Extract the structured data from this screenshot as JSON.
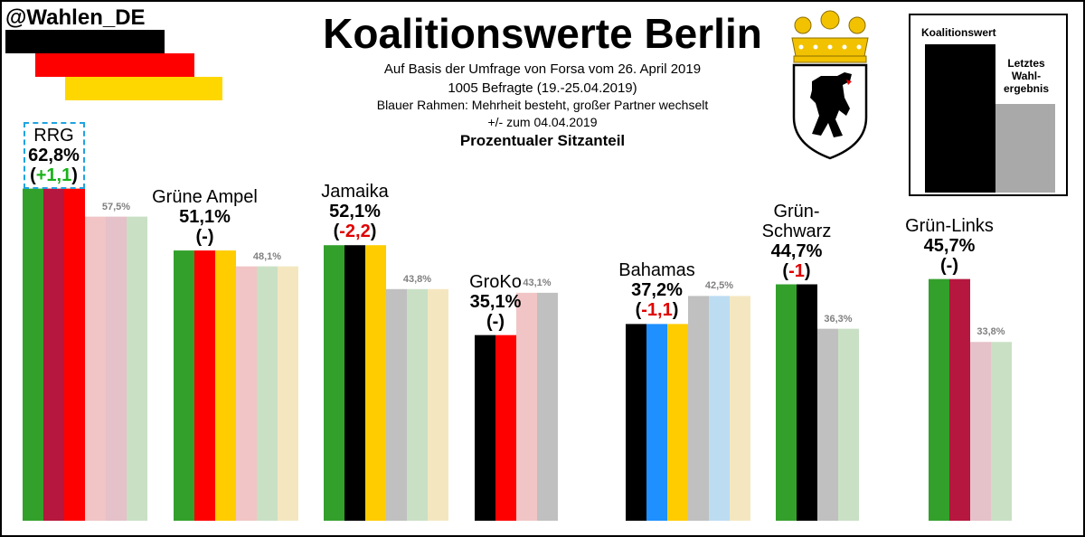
{
  "header": {
    "handle": "@Wahlen_DE",
    "title": "Koalitionswerte Berlin",
    "subtitle_lines": [
      "Auf Basis der Umfrage  von Forsa vom 26. April 2019",
      "1005 Befragte (19.-25.04.2019)",
      "Blauer Rahmen: Mehrheit besteht, großer Partner wechselt",
      "+/- zum  04.04.2019"
    ],
    "subtitle_bold": "Prozentualer Sitzanteil"
  },
  "flag_colors": [
    "#000000",
    "#ff0000",
    "#ffd700"
  ],
  "legend": {
    "title": "Koalitionswert",
    "sub": [
      "Letztes",
      "Wahl-",
      "ergebnis"
    ]
  },
  "icons": [
    "berlin-coat-of-arms-icon"
  ],
  "chart_data": {
    "type": "bar",
    "title": "Koalitionswerte Berlin",
    "ylim": [
      0,
      100
    ],
    "grid": false,
    "legend_position": "top-right",
    "coalitions": [
      {
        "name": "RRG",
        "value": 62.8,
        "value_label": "62,8%",
        "delta_label": "(+1,1)",
        "delta_sign": "pos",
        "last": 57.5,
        "last_label": "57,5%",
        "majority_switch": true,
        "colors": [
          "#33a02c",
          "#b5173e",
          "#ff0000"
        ],
        "last_colors": [
          "#f1c5c5",
          "#e5c1c9",
          "#c9e0c5"
        ]
      },
      {
        "name": "Grüne Ampel",
        "value": 51.1,
        "value_label": "51,1%",
        "delta_label": "(-)",
        "delta_sign": "none",
        "last": 48.1,
        "last_label": "48,1%",
        "majority_switch": false,
        "colors": [
          "#33a02c",
          "#ff0000",
          "#ffcc00"
        ],
        "last_colors": [
          "#f1c5c5",
          "#c9e0c5",
          "#f4e7c0"
        ]
      },
      {
        "name": "Jamaika",
        "value": 52.1,
        "value_label": "52,1%",
        "delta_label": "(-2,2)",
        "delta_sign": "neg",
        "last": 43.8,
        "last_label": "43,8%",
        "majority_switch": false,
        "colors": [
          "#33a02c",
          "#000000",
          "#ffcc00"
        ],
        "last_colors": [
          "#c0c0c0",
          "#c9e0c5",
          "#f4e7c0"
        ]
      },
      {
        "name": "GroKo",
        "value": 35.1,
        "value_label": "35,1%",
        "delta_label": "(-)",
        "delta_sign": "none",
        "last": 43.1,
        "last_label": "43,1%",
        "majority_switch": false,
        "colors": [
          "#000000",
          "#ff0000"
        ],
        "last_colors": [
          "#f1c5c5",
          "#c0c0c0"
        ]
      },
      {
        "name": "Bahamas",
        "value": 37.2,
        "value_label": "37,2%",
        "delta_label": "(-1,1)",
        "delta_sign": "neg",
        "last": 42.5,
        "last_label": "42,5%",
        "majority_switch": false,
        "colors": [
          "#000000",
          "#1e90ff",
          "#ffcc00"
        ],
        "last_colors": [
          "#c0c0c0",
          "#bcdcf2",
          "#f4e7c0"
        ]
      },
      {
        "name": "Grün-Schwarz",
        "name_lines": [
          "Grün-",
          "Schwarz"
        ],
        "value": 44.7,
        "value_label": "44,7%",
        "delta_label": "(-1)",
        "delta_sign": "neg",
        "last": 36.3,
        "last_label": "36,3%",
        "majority_switch": false,
        "colors": [
          "#33a02c",
          "#000000"
        ],
        "last_colors": [
          "#c0c0c0",
          "#c9e0c5"
        ]
      },
      {
        "name": "Grün-Links",
        "value": 45.7,
        "value_label": "45,7%",
        "delta_label": "(-)",
        "delta_sign": "none",
        "last": 33.8,
        "last_label": "33,8%",
        "majority_switch": false,
        "colors": [
          "#33a02c",
          "#b5173e"
        ],
        "last_colors": [
          "#e5c1c9",
          "#c9e0c5"
        ]
      }
    ]
  }
}
